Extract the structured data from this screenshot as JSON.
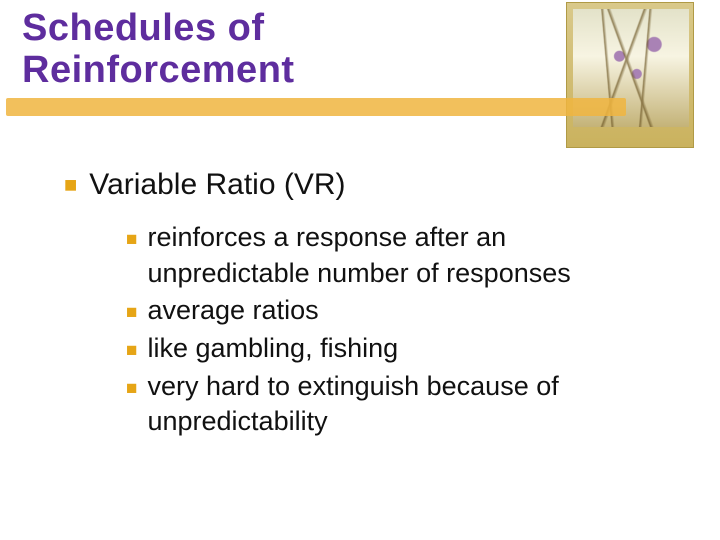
{
  "colors": {
    "title": "#5e2d9e",
    "bullet": "#e6a516",
    "brush": "#f0b540",
    "text": "#111111",
    "background": "#ffffff"
  },
  "typography": {
    "title_fontsize": 38,
    "title_weight": 900,
    "lvl1_fontsize": 30,
    "lvl2_fontsize": 27,
    "title_family": "Arial",
    "body_family": "Verdana"
  },
  "title": {
    "line1": "Schedules of",
    "line2": "Reinforcement"
  },
  "content": {
    "heading": "Variable Ratio (VR)",
    "items": [
      "reinforces a response after an unpredictable number of responses",
      "average ratios",
      "like gambling, fishing",
      "very hard to extinguish because of unpredictability"
    ]
  }
}
